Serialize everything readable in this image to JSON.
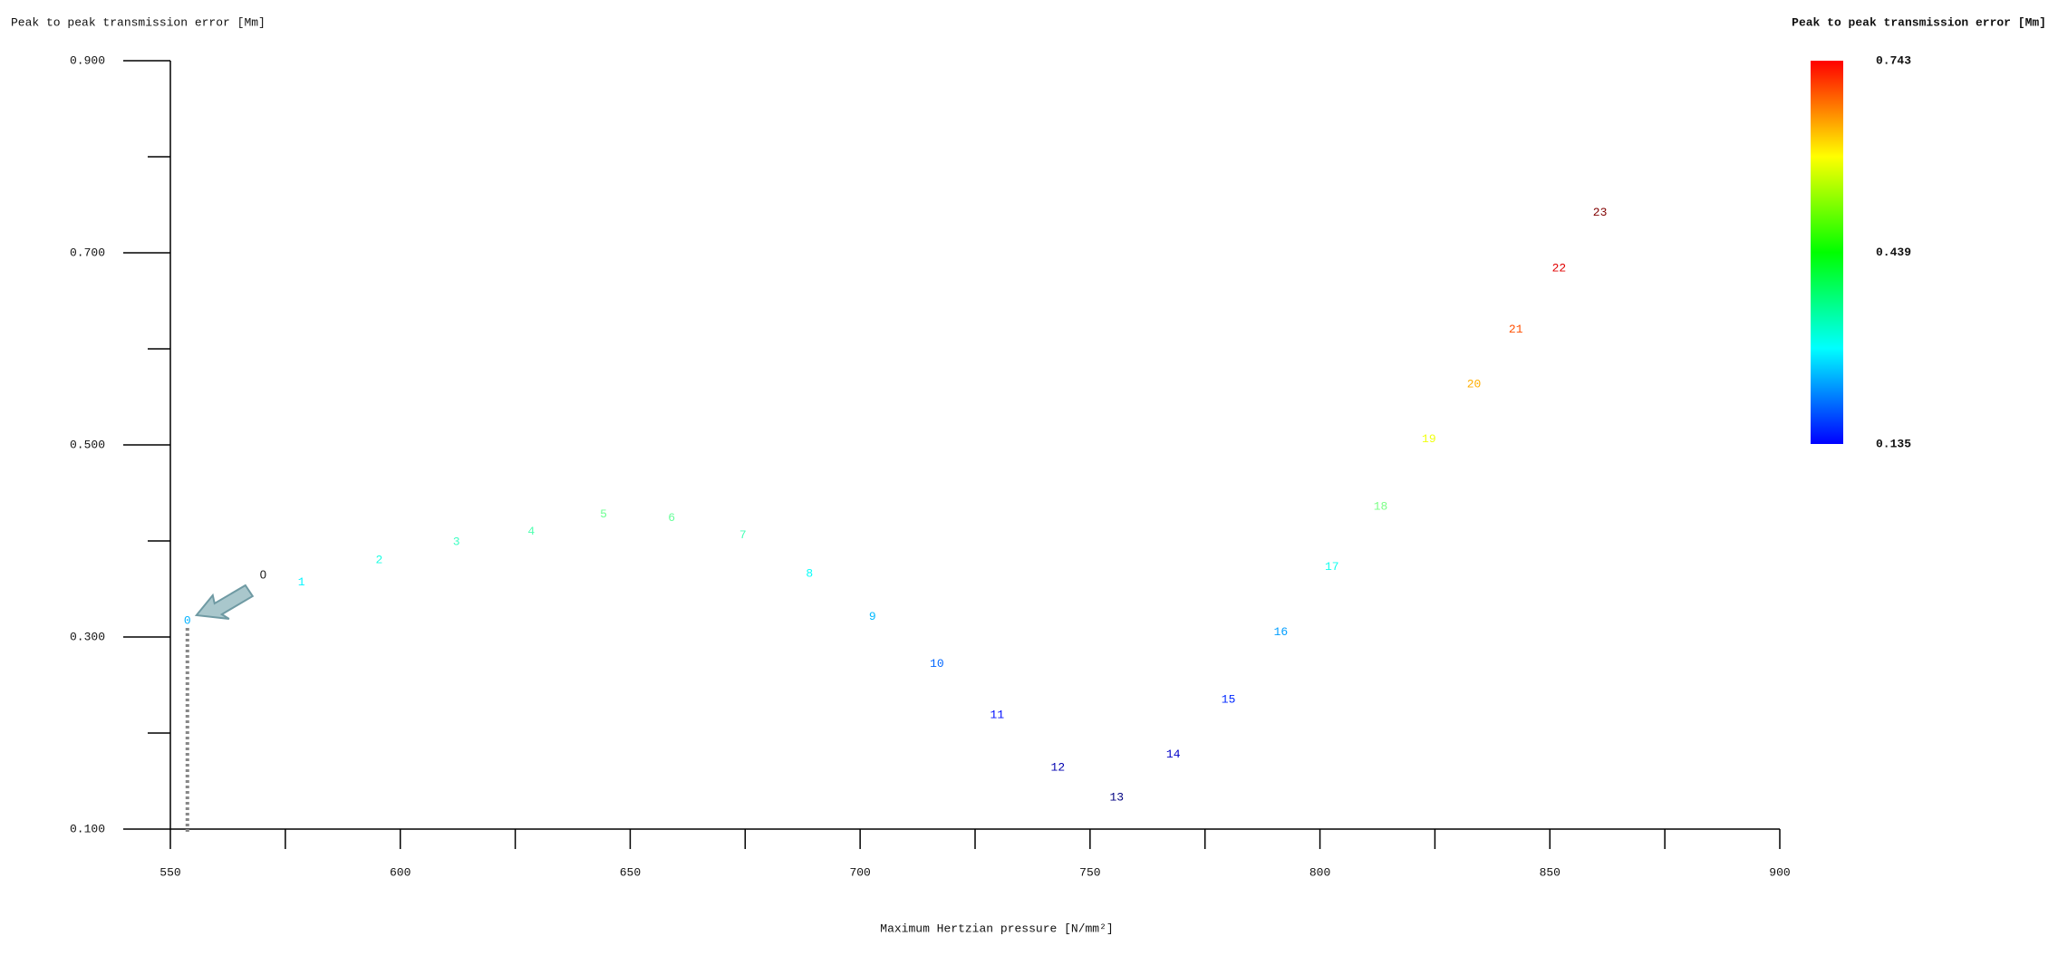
{
  "chart_data": {
    "type": "scatter",
    "title": "Peak to peak transmission error [Μm]",
    "x_label": "Maximum Hertzian pressure [N/mm²]",
    "xlim": [
      550,
      900
    ],
    "xticks": [
      550,
      600,
      650,
      700,
      750,
      800,
      850,
      900
    ],
    "xminor_ticks": [
      575,
      625,
      675,
      725,
      775,
      825,
      875
    ],
    "ylim": [
      0.1,
      0.9
    ],
    "yticks": [
      {
        "value": 0.1,
        "label": "0.100"
      },
      {
        "value": 0.3,
        "label": "0.300"
      },
      {
        "value": 0.5,
        "label": "0.500"
      },
      {
        "value": 0.7,
        "label": "0.700"
      },
      {
        "value": 0.9,
        "label": "0.900"
      }
    ],
    "yminor_ticks": [
      0.2,
      0.4,
      0.6,
      0.8
    ],
    "colormap": "jet",
    "colorbar": {
      "title": "Peak to peak transmission error [Μm]",
      "ticks": [
        0.135,
        0.439,
        0.743
      ]
    },
    "series": [
      {
        "labels": [
          "0",
          "1",
          "2",
          "3",
          "4",
          "5",
          "6",
          "7",
          "8",
          "9",
          "10",
          "11",
          "12",
          "13",
          "14",
          "15",
          "16",
          "17",
          "18",
          "19",
          "20",
          "21",
          "22",
          "23"
        ],
        "x": [
          553.7,
          578.5,
          595.4,
          612.2,
          628.5,
          644.2,
          659.0,
          674.5,
          689.0,
          702.7,
          716.7,
          729.8,
          743.0,
          755.8,
          768.1,
          780.1,
          791.5,
          802.6,
          813.2,
          823.7,
          833.5,
          842.6,
          852.0,
          860.9
        ],
        "values": [
          0.317,
          0.357,
          0.38,
          0.399,
          0.41,
          0.428,
          0.424,
          0.406,
          0.366,
          0.321,
          0.272,
          0.219,
          0.164,
          0.133,
          0.178,
          0.235,
          0.305,
          0.373,
          0.436,
          0.506,
          0.563,
          0.62,
          0.684,
          0.742
        ]
      }
    ],
    "annotation": "0"
  }
}
